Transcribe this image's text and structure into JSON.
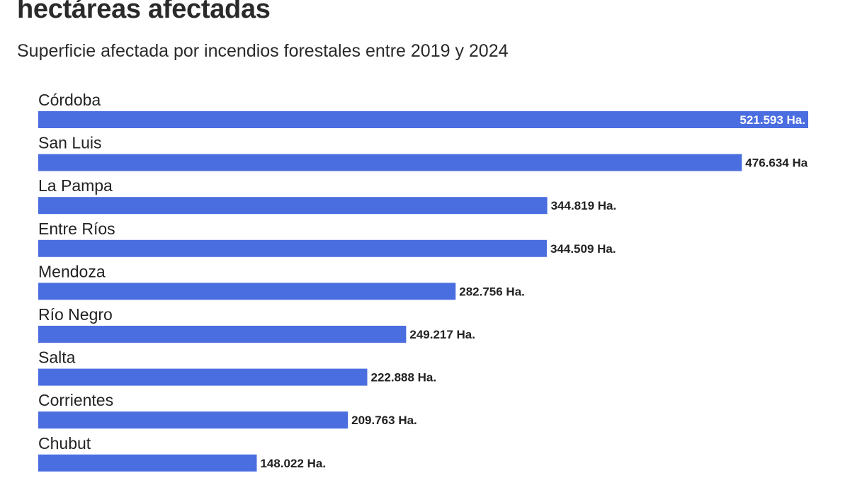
{
  "chart_data": {
    "type": "bar",
    "orientation": "horizontal",
    "title": "hectáreas afectadas",
    "subtitle": "Superficie afectada por incendios forestales entre 2019 y 2024",
    "categories": [
      "Córdoba",
      "San Luis",
      "La Pampa",
      "Entre Ríos",
      "Mendoza",
      "Río Negro",
      "Salta",
      "Corrientes",
      "Chubut"
    ],
    "values": [
      521593,
      476634,
      344819,
      344509,
      282756,
      249217,
      222888,
      209763,
      148022
    ],
    "value_labels": [
      "521.593 Ha.",
      "476.634 Ha.",
      "344.819 Ha.",
      "344.509 Ha.",
      "282.756 Ha.",
      "249.217 Ha.",
      "222.888 Ha.",
      "209.763 Ha.",
      "148.022 Ha."
    ],
    "xlim": [
      0,
      521593
    ],
    "grid": false,
    "bar_color": "#4a6de0"
  }
}
